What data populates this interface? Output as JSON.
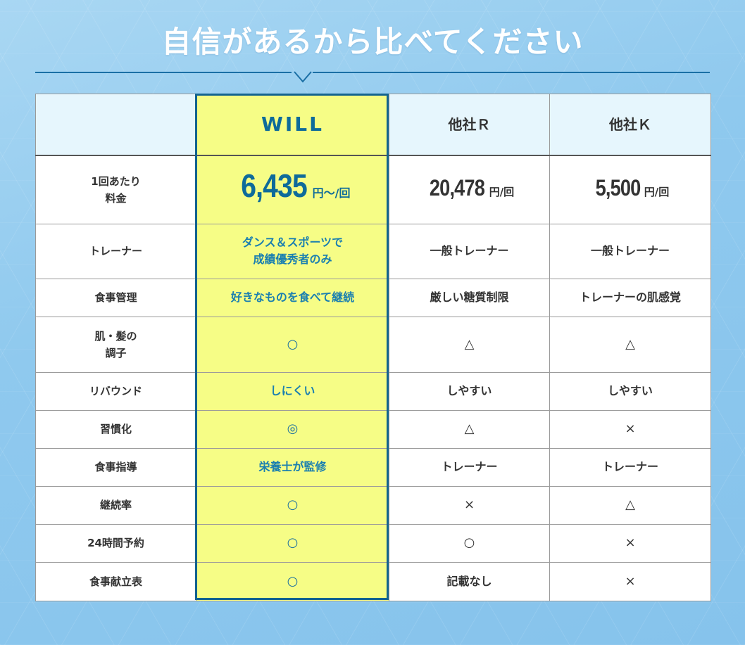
{
  "title": "自信があるから比べてください",
  "header": {
    "corner": "",
    "will": "WILL",
    "r": "他社Ｒ",
    "k": "他社Ｋ"
  },
  "price_row": {
    "label": [
      "1回あたり",
      "料金"
    ],
    "will": {
      "amount": "6,435",
      "unit": "円～/回"
    },
    "r": {
      "amount": "20,478",
      "unit": "円/回"
    },
    "k": {
      "amount": "5,500",
      "unit": "円/回"
    }
  },
  "rows": [
    {
      "label": [
        "トレーナー"
      ],
      "will": [
        "ダンス＆スポーツで",
        "成績優秀者のみ"
      ],
      "r": "一般トレーナー",
      "k": "一般トレーナー",
      "sym": false
    },
    {
      "label": [
        "食事管理"
      ],
      "will": [
        "好きなものを食べて継続"
      ],
      "r": "厳しい糖質制限",
      "k": "トレーナーの肌感覚",
      "sym": false
    },
    {
      "label": [
        "肌・髪の",
        "調子"
      ],
      "will": [
        "○"
      ],
      "r": "△",
      "k": "△",
      "sym": true
    },
    {
      "label": [
        "リバウンド"
      ],
      "will": [
        "しにくい"
      ],
      "r": "しやすい",
      "k": "しやすい",
      "sym": false
    },
    {
      "label": [
        "習慣化"
      ],
      "will": [
        "◎"
      ],
      "r": "△",
      "k": "×",
      "sym": true
    },
    {
      "label": [
        "食事指導"
      ],
      "will": [
        "栄養士が監修"
      ],
      "r": "トレーナー",
      "k": "トレーナー",
      "sym": false
    },
    {
      "label": [
        "継続率"
      ],
      "will": [
        "○"
      ],
      "r": "×",
      "k": "△",
      "sym": true
    },
    {
      "label": [
        "24時間予約"
      ],
      "will": [
        "○"
      ],
      "r": "○",
      "k": "×",
      "sym": true
    },
    {
      "label": [
        "食事献立表"
      ],
      "will": [
        "○"
      ],
      "r": "記載なし",
      "k": "×",
      "sym": true
    }
  ],
  "colors": {
    "will_bg": "#f6fd86",
    "will_text": "#0e6b9a",
    "header_bg": "#e6f6fd",
    "page_bg": "#8fc9ee"
  }
}
